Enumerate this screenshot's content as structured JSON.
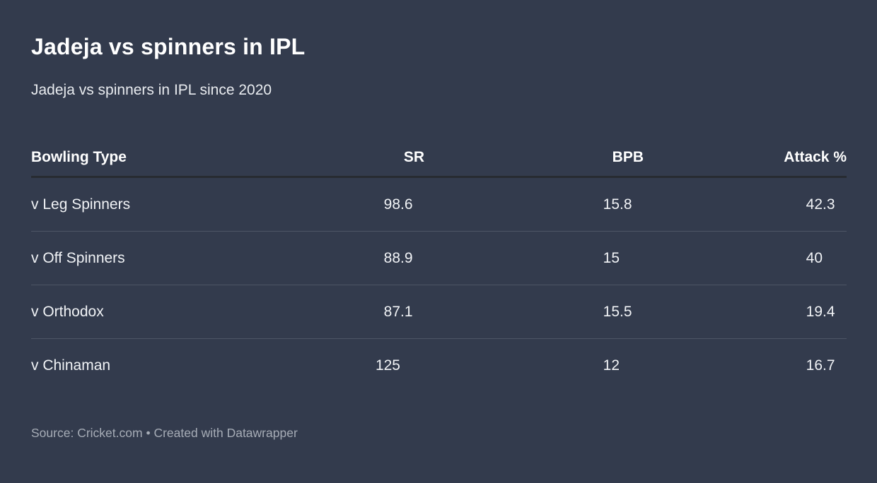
{
  "header": {
    "title": "Jadeja vs spinners in IPL",
    "subtitle": "Jadeja vs spinners in IPL since 2020"
  },
  "chart_data": {
    "type": "table",
    "title": "Jadeja vs spinners in IPL",
    "subtitle": "Jadeja vs spinners in IPL since 2020",
    "columns": [
      "Bowling Type",
      "SR",
      "BPB",
      "Attack %"
    ],
    "rows": [
      {
        "bowling_type": "v Leg Spinners",
        "sr": "98.6",
        "bpb": "15.8",
        "attack_pct": "42.3"
      },
      {
        "bowling_type": "v Off Spinners",
        "sr": "88.9",
        "bpb": "15",
        "attack_pct": "40"
      },
      {
        "bowling_type": "v Orthodox",
        "sr": "87.1",
        "bpb": "15.5",
        "attack_pct": "19.4"
      },
      {
        "bowling_type": "v Chinaman",
        "sr": "125",
        "bpb": "12",
        "attack_pct": "16.7"
      }
    ],
    "layout_hints": {
      "numeric_alignment": "decimal-point",
      "header_underline": true,
      "row_separators": true
    }
  },
  "footer": {
    "source_prefix": "Source:",
    "source_name": "Cricket.com",
    "bullet": "•",
    "created_prefix": "Created with",
    "tool_name": "Datawrapper"
  },
  "colors": {
    "background": "#333b4d",
    "title_text": "#ffffff",
    "subtitle_text": "#e8ebef",
    "cell_text": "#f1f3f6",
    "header_underline": "#272b31",
    "row_separator": "#4d5565",
    "footer_text": "#a6acb6"
  }
}
